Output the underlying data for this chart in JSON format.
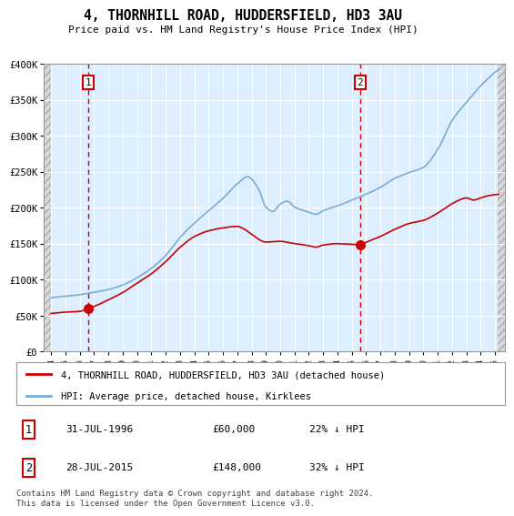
{
  "title": "4, THORNHILL ROAD, HUDDERSFIELD, HD3 3AU",
  "subtitle": "Price paid vs. HM Land Registry's House Price Index (HPI)",
  "ylim": [
    0,
    400000
  ],
  "yticks": [
    0,
    50000,
    100000,
    150000,
    200000,
    250000,
    300000,
    350000,
    400000
  ],
  "ytick_labels": [
    "£0",
    "£50K",
    "£100K",
    "£150K",
    "£200K",
    "£250K",
    "£300K",
    "£350K",
    "£400K"
  ],
  "xlim_start": 1993.5,
  "xlim_end": 2025.7,
  "xticks": [
    1994,
    1995,
    1996,
    1997,
    1998,
    1999,
    2000,
    2001,
    2002,
    2003,
    2004,
    2005,
    2006,
    2007,
    2008,
    2009,
    2010,
    2011,
    2012,
    2013,
    2014,
    2015,
    2016,
    2017,
    2018,
    2019,
    2020,
    2021,
    2022,
    2023,
    2024,
    2025
  ],
  "sale1_x": 1996.58,
  "sale1_y": 60000,
  "sale1_label": "1",
  "sale1_date": "31-JUL-1996",
  "sale1_price": "£60,000",
  "sale1_hpi": "22% ↓ HPI",
  "sale2_x": 2015.58,
  "sale2_y": 148000,
  "sale2_label": "2",
  "sale2_date": "28-JUL-2015",
  "sale2_price": "£148,000",
  "sale2_hpi": "32% ↓ HPI",
  "hpi_color": "#7aadd4",
  "sold_color": "#cc0000",
  "background_plot": "#ddeeff",
  "grid_color": "#ffffff",
  "legend_label_sold": "4, THORNHILL ROAD, HUDDERSFIELD, HD3 3AU (detached house)",
  "legend_label_hpi": "HPI: Average price, detached house, Kirklees",
  "footer": "Contains HM Land Registry data © Crown copyright and database right 2024.\nThis data is licensed under the Open Government Licence v3.0."
}
